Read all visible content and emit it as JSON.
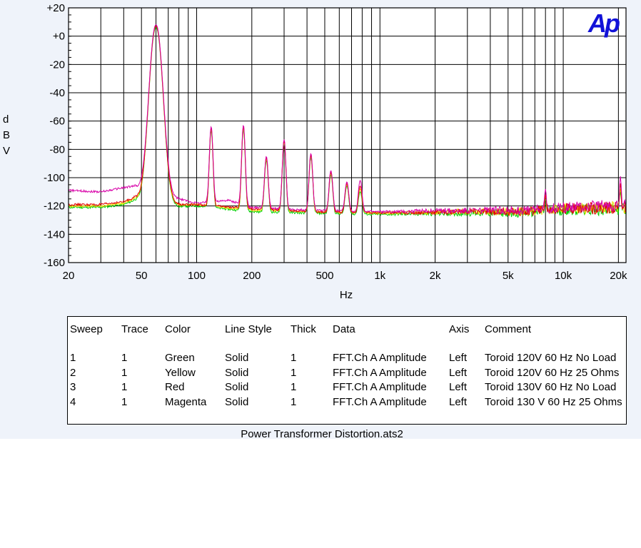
{
  "chart_data": {
    "type": "line",
    "xscale": "log",
    "xlim": [
      20,
      22000
    ],
    "ylim": [
      -160,
      20
    ],
    "grid": true,
    "xlabel": "Hz",
    "ylabel": "dBV",
    "ylabel_letters": [
      "d",
      "B",
      "V"
    ],
    "xticks": [
      {
        "v": 20,
        "label": "20"
      },
      {
        "v": 50,
        "label": "50"
      },
      {
        "v": 100,
        "label": "100"
      },
      {
        "v": 200,
        "label": "200"
      },
      {
        "v": 500,
        "label": "500"
      },
      {
        "v": 1000,
        "label": "1k"
      },
      {
        "v": 2000,
        "label": "2k"
      },
      {
        "v": 5000,
        "label": "5k"
      },
      {
        "v": 10000,
        "label": "10k"
      },
      {
        "v": 20000,
        "label": "20k"
      }
    ],
    "yticks": [
      {
        "v": 20,
        "label": "+20"
      },
      {
        "v": 0,
        "label": "+0"
      },
      {
        "v": -20,
        "label": "-20"
      },
      {
        "v": -40,
        "label": "-40"
      },
      {
        "v": -60,
        "label": "-60"
      },
      {
        "v": -80,
        "label": "-80"
      },
      {
        "v": -100,
        "label": "-100"
      },
      {
        "v": -120,
        "label": "-120"
      },
      {
        "v": -140,
        "label": "-140"
      },
      {
        "v": -160,
        "label": "-160"
      }
    ],
    "series": [
      {
        "name": "Green",
        "color": "#00d000",
        "baseline": [
          [
            20,
            -121
          ],
          [
            30,
            -121
          ],
          [
            40,
            -119
          ],
          [
            46,
            -116
          ],
          [
            54,
            -121
          ],
          [
            100,
            -120
          ],
          [
            200,
            -124
          ],
          [
            400,
            -125
          ],
          [
            1000,
            -126
          ],
          [
            3000,
            -125
          ],
          [
            6000,
            -125
          ],
          [
            10000,
            -123
          ],
          [
            22000,
            -122
          ]
        ],
        "peaks": [
          [
            60,
            6,
            -121
          ],
          [
            120,
            -67,
            -121
          ],
          [
            180,
            -66,
            -123
          ],
          [
            240,
            -88,
            -124
          ],
          [
            300,
            -76,
            -124
          ],
          [
            420,
            -86,
            -125
          ],
          [
            540,
            -98,
            -126
          ],
          [
            660,
            -106,
            -126
          ],
          [
            780,
            -110,
            -126
          ],
          [
            8000,
            -115,
            -124
          ],
          [
            20500,
            -110,
            -122
          ]
        ]
      },
      {
        "name": "Yellow",
        "color": "#f0e000",
        "baseline": [
          [
            20,
            -120
          ],
          [
            30,
            -120
          ],
          [
            40,
            -118
          ],
          [
            46,
            -115
          ],
          [
            54,
            -120
          ],
          [
            100,
            -119
          ],
          [
            200,
            -123
          ],
          [
            400,
            -124
          ],
          [
            1000,
            -125
          ],
          [
            3000,
            -124
          ],
          [
            6000,
            -124
          ],
          [
            10000,
            -122
          ],
          [
            22000,
            -121
          ]
        ],
        "peaks": [
          [
            60,
            7,
            -120
          ],
          [
            120,
            -66,
            -120
          ],
          [
            180,
            -65,
            -122
          ],
          [
            240,
            -87,
            -123
          ],
          [
            300,
            -75,
            -123
          ],
          [
            420,
            -85,
            -124
          ],
          [
            540,
            -97,
            -125
          ],
          [
            660,
            -105,
            -125
          ],
          [
            780,
            -108,
            -125
          ],
          [
            8000,
            -113,
            -123
          ],
          [
            20500,
            -108,
            -121
          ]
        ]
      },
      {
        "name": "Red",
        "color": "#e00000",
        "baseline": [
          [
            20,
            -119
          ],
          [
            30,
            -119
          ],
          [
            40,
            -117
          ],
          [
            46,
            -114
          ],
          [
            54,
            -119
          ],
          [
            100,
            -119
          ],
          [
            200,
            -122
          ],
          [
            400,
            -124
          ],
          [
            1000,
            -125
          ],
          [
            3000,
            -124
          ],
          [
            6000,
            -124
          ],
          [
            10000,
            -122
          ],
          [
            22000,
            -121
          ]
        ],
        "peaks": [
          [
            60,
            7,
            -119
          ],
          [
            120,
            -65,
            -119
          ],
          [
            180,
            -64,
            -122
          ],
          [
            240,
            -86,
            -123
          ],
          [
            300,
            -74,
            -123
          ],
          [
            420,
            -84,
            -124
          ],
          [
            540,
            -96,
            -125
          ],
          [
            660,
            -104,
            -125
          ],
          [
            780,
            -106,
            -125
          ],
          [
            8000,
            -112,
            -123
          ],
          [
            20500,
            -104,
            -121
          ]
        ]
      },
      {
        "name": "Magenta",
        "color": "#d800a8",
        "baseline": [
          [
            20,
            -109
          ],
          [
            30,
            -110
          ],
          [
            40,
            -107
          ],
          [
            46,
            -106
          ],
          [
            54,
            -117
          ],
          [
            80,
            -115
          ],
          [
            100,
            -118
          ],
          [
            150,
            -116
          ],
          [
            200,
            -121
          ],
          [
            400,
            -123
          ],
          [
            1000,
            -124
          ],
          [
            3000,
            -123
          ],
          [
            6000,
            -123
          ],
          [
            10000,
            -121
          ],
          [
            22000,
            -119
          ]
        ],
        "peaks": [
          [
            60,
            8,
            -112
          ],
          [
            120,
            -64,
            -118
          ],
          [
            180,
            -63,
            -120
          ],
          [
            240,
            -85,
            -122
          ],
          [
            300,
            -73,
            -122
          ],
          [
            420,
            -83,
            -123
          ],
          [
            540,
            -95,
            -124
          ],
          [
            660,
            -103,
            -124
          ],
          [
            780,
            -102,
            -124
          ],
          [
            8000,
            -108,
            -122
          ],
          [
            20500,
            -99,
            -119
          ]
        ]
      }
    ]
  },
  "legend": {
    "headers": [
      "Sweep",
      "Trace",
      "Color",
      "Line Style",
      "Thick",
      "Data",
      "Axis",
      "Comment"
    ],
    "rows": [
      [
        "1",
        "1",
        "Green",
        "Solid",
        "1",
        "FFT.Ch A Amplitude",
        "Left",
        "Toroid 120V 60 Hz No Load"
      ],
      [
        "2",
        "1",
        "Yellow",
        "Solid",
        "1",
        "FFT.Ch A Amplitude",
        "Left",
        "Toroid 120V 60 Hz 25 Ohms"
      ],
      [
        "3",
        "1",
        "Red",
        "Solid",
        "1",
        "FFT.Ch A Amplitude",
        "Left",
        "Toroid 130V 60 Hz No Load"
      ],
      [
        "4",
        "1",
        "Magenta",
        "Solid",
        "1",
        "FFT.Ch A Amplitude",
        "Left",
        "Toroid 130 V 60 Hz 25 Ohms"
      ]
    ]
  },
  "file_name": "Power Transformer Distortion.ats2",
  "logo": "Ap",
  "colors": {
    "background": "#eff3fa",
    "plot_background": "#ffffff",
    "logo": "#1212d8"
  }
}
